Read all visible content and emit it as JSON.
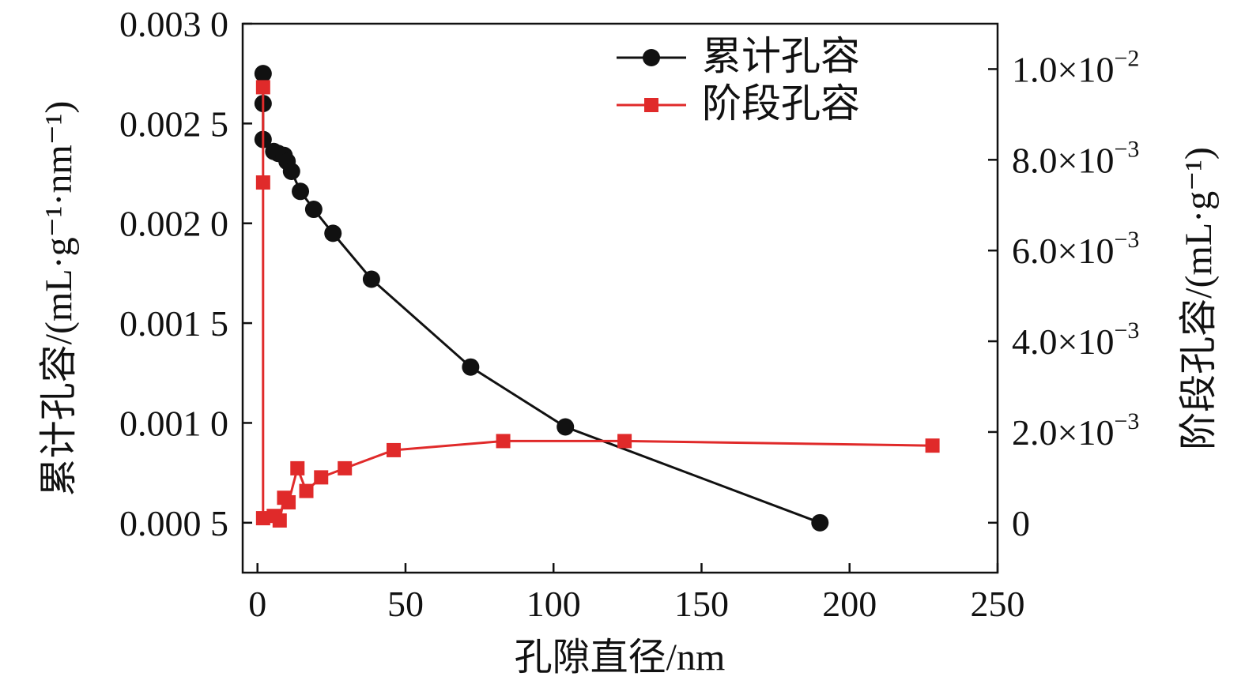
{
  "chart_data": {
    "type": "line",
    "title": "",
    "xlabel": "孔隙直径/nm",
    "ylabel_left": "累计孔容/(mL·g⁻¹·nm⁻¹)",
    "ylabel_right": "阶段孔容/(mL·g⁻¹)",
    "xlim": [
      -5,
      250
    ],
    "ylim_left": [
      0.00025,
      0.003
    ],
    "ylim_right": [
      -0.0011,
      0.011
    ],
    "grid": false,
    "legend_position": "top-center",
    "x_ticks": [
      {
        "value": 0,
        "label": "0"
      },
      {
        "value": 50,
        "label": "50"
      },
      {
        "value": 100,
        "label": "100"
      },
      {
        "value": 150,
        "label": "150"
      },
      {
        "value": 200,
        "label": "200"
      },
      {
        "value": 250,
        "label": "250"
      }
    ],
    "y_left_ticks": [
      {
        "value": 0.0005,
        "label": "0.000 5"
      },
      {
        "value": 0.001,
        "label": "0.001 0"
      },
      {
        "value": 0.0015,
        "label": "0.001 5"
      },
      {
        "value": 0.002,
        "label": "0.002 0"
      },
      {
        "value": 0.0025,
        "label": "0.002 5"
      },
      {
        "value": 0.003,
        "label": "0.003 0"
      }
    ],
    "y_right_ticks": [
      {
        "value": 0,
        "label": "0",
        "exp": ""
      },
      {
        "value": 0.002,
        "label": "2.0×10",
        "exp": "−3"
      },
      {
        "value": 0.004,
        "label": "4.0×10",
        "exp": "−3"
      },
      {
        "value": 0.006,
        "label": "6.0×10",
        "exp": "−3"
      },
      {
        "value": 0.008,
        "label": "8.0×10",
        "exp": "−3"
      },
      {
        "value": 0.01,
        "label": "1.0×10",
        "exp": "−2"
      }
    ],
    "series": [
      {
        "name": "累计孔容",
        "axis": "left",
        "color": "#111111",
        "marker": "circle",
        "x": [
          1.9,
          1.9,
          1.9,
          5.5,
          7.0,
          9.0,
          10.0,
          11.5,
          14.5,
          19.0,
          25.5,
          38.5,
          72.0,
          104.0,
          190.0
        ],
        "y": [
          0.00275,
          0.0026,
          0.00242,
          0.00236,
          0.00235,
          0.00234,
          0.00231,
          0.00226,
          0.00216,
          0.00207,
          0.00195,
          0.00172,
          0.00128,
          0.00098,
          0.0005
        ]
      },
      {
        "name": "阶段孔容",
        "axis": "right",
        "color": "#e02a2a",
        "marker": "square",
        "x": [
          1.9,
          1.9,
          1.9,
          5.5,
          7.5,
          9.0,
          10.5,
          13.5,
          16.5,
          21.5,
          29.5,
          46.0,
          83.0,
          124.0,
          228.0
        ],
        "y": [
          0.0096,
          0.0075,
          0.0001,
          0.00015,
          5e-05,
          0.00055,
          0.00045,
          0.0012,
          0.0007,
          0.001,
          0.0012,
          0.0016,
          0.0018,
          0.0018,
          0.0017
        ]
      }
    ]
  }
}
